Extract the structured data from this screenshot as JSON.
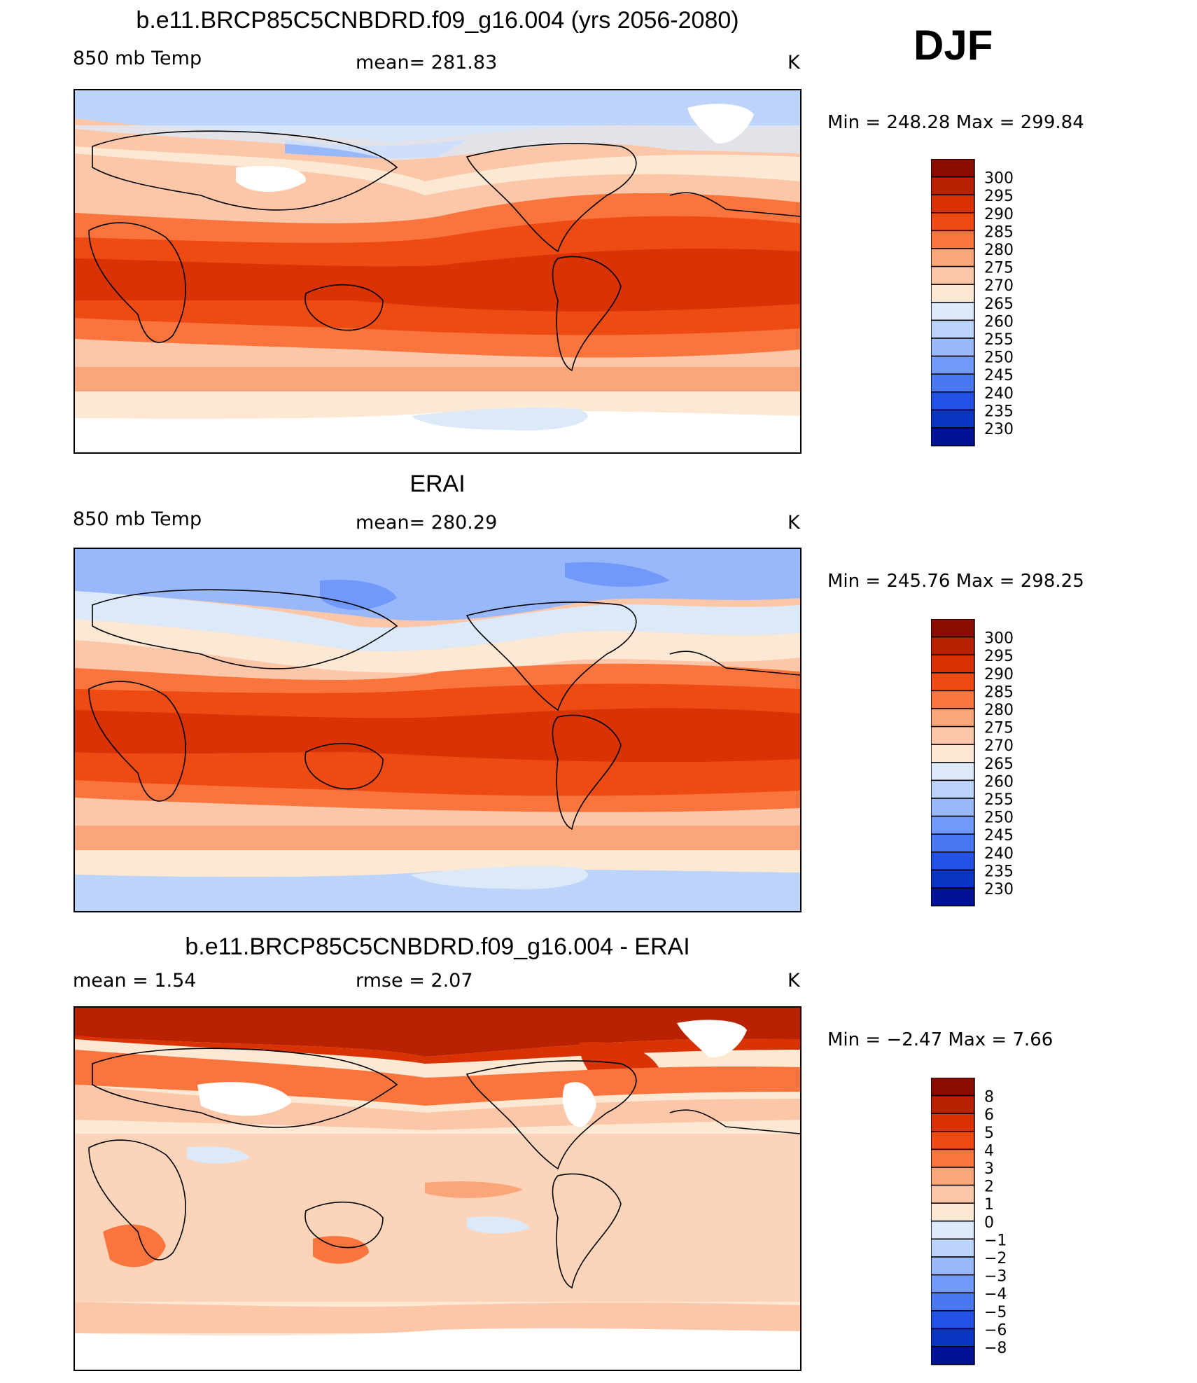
{
  "season": "DJF",
  "units": "K",
  "colors": {
    "temp_scale": [
      "#f6e9dc",
      "#dce9f9",
      "#bcd4fa",
      "#99b8fb",
      "#7199f9",
      "#4a78f0",
      "#2452e6",
      "#0a34c4",
      "#001296",
      "#000a6e"
    ],
    "warm_scale": [
      "#fde8d3",
      "#fcc7a8",
      "#fba67a",
      "#f9804d",
      "#f45a22",
      "#e23908",
      "#b92200",
      "#8a0d00"
    ]
  },
  "panels": [
    {
      "title": "b.e11.BRCP85C5CNBDRD.f09_g16.004 (yrs 2056-2080)",
      "left_label": "850 mb Temp",
      "center_label": "mean=  281.83",
      "units": "K",
      "minmax": "Min  =  248.28  Max  =  299.84",
      "colorbar": {
        "labels": [
          "300",
          "295",
          "290",
          "285",
          "280",
          "275",
          "270",
          "265",
          "260",
          "255",
          "250",
          "245",
          "240",
          "235",
          "230"
        ],
        "colors": [
          "#8a0d00",
          "#b92200",
          "#d83205",
          "#ee4a14",
          "#f9753d",
          "#fba67a",
          "#fcc7a8",
          "#fde8d3",
          "#dce9f9",
          "#bcd4fa",
          "#99b8fb",
          "#7199f9",
          "#4a78f0",
          "#2452e6",
          "#0a34c4",
          "#001296"
        ]
      }
    },
    {
      "title": "ERAI",
      "left_label": "850 mb Temp",
      "center_label": "mean=  280.29",
      "units": "K",
      "minmax": "Min  =  245.76  Max  =  298.25",
      "colorbar": {
        "labels": [
          "300",
          "295",
          "290",
          "285",
          "280",
          "275",
          "270",
          "265",
          "260",
          "255",
          "250",
          "245",
          "240",
          "235",
          "230"
        ],
        "colors": [
          "#8a0d00",
          "#b92200",
          "#d83205",
          "#ee4a14",
          "#f9753d",
          "#fba67a",
          "#fcc7a8",
          "#fde8d3",
          "#dce9f9",
          "#bcd4fa",
          "#99b8fb",
          "#7199f9",
          "#4a78f0",
          "#2452e6",
          "#0a34c4",
          "#001296"
        ]
      }
    },
    {
      "title": "b.e11.BRCP85C5CNBDRD.f09_g16.004 - ERAI",
      "left_label": "mean  =     1.54",
      "center_label": "rmse  =     2.07",
      "units": "K",
      "minmax": "Min  =    −2.47  Max  =     7.66",
      "colorbar": {
        "labels": [
          "8",
          "6",
          "5",
          "4",
          "3",
          "2",
          "1",
          "0",
          "−1",
          "−2",
          "−3",
          "−4",
          "−5",
          "−6",
          "−8"
        ],
        "colors": [
          "#8a0d00",
          "#b92200",
          "#d83205",
          "#ee4a14",
          "#f9753d",
          "#fba67a",
          "#fcc7a8",
          "#fde8d3",
          "#dce9f9",
          "#bcd4fa",
          "#99b8fb",
          "#7199f9",
          "#4a78f0",
          "#2452e6",
          "#0a34c4",
          "#001296"
        ]
      }
    }
  ]
}
